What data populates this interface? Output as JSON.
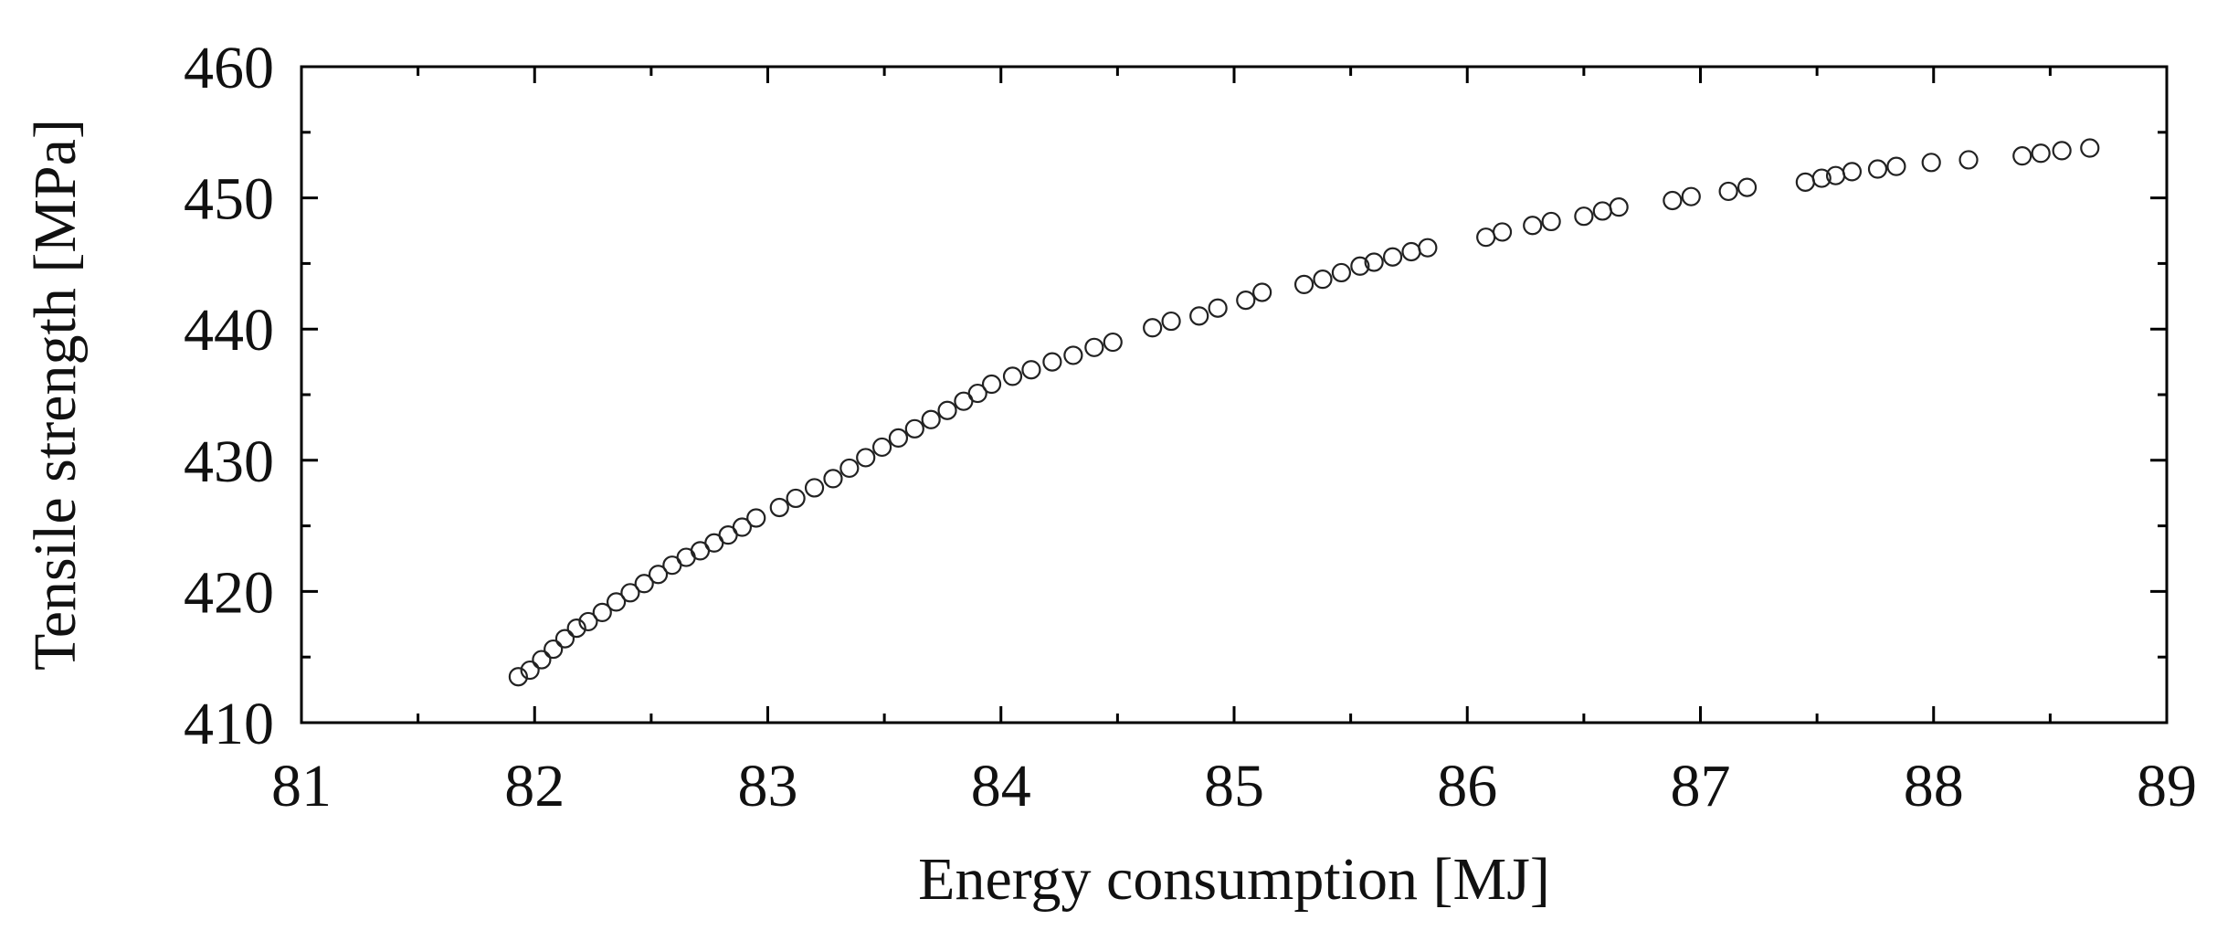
{
  "chart_data": {
    "type": "scatter",
    "title": "",
    "xlabel": "Energy consumption [MJ]",
    "ylabel": "Tensile strength [MPa]",
    "xlim": [
      81,
      89
    ],
    "ylim": [
      410,
      460
    ],
    "x_ticks": [
      81,
      82,
      83,
      84,
      85,
      86,
      87,
      88,
      89
    ],
    "y_ticks": [
      410,
      420,
      430,
      440,
      450,
      460
    ],
    "x_tick_labels": [
      "81",
      "82",
      "83",
      "84",
      "85",
      "86",
      "87",
      "88",
      "89"
    ],
    "y_tick_labels": [
      "410",
      "420",
      "430",
      "440",
      "450",
      "460"
    ],
    "grid": false,
    "marker": "open-circle",
    "series": [
      {
        "name": "",
        "x": [
          81.93,
          81.98,
          82.03,
          82.08,
          82.13,
          82.18,
          82.23,
          82.29,
          82.35,
          82.41,
          82.47,
          82.53,
          82.59,
          82.65,
          82.71,
          82.77,
          82.83,
          82.89,
          82.95,
          83.05,
          83.12,
          83.2,
          83.28,
          83.35,
          83.42,
          83.49,
          83.56,
          83.63,
          83.7,
          83.77,
          83.84,
          83.9,
          83.96,
          84.05,
          84.13,
          84.22,
          84.31,
          84.4,
          84.48,
          84.65,
          84.73,
          84.85,
          84.93,
          85.05,
          85.12,
          85.3,
          85.38,
          85.46,
          85.54,
          85.6,
          85.68,
          85.76,
          85.83,
          86.08,
          86.15,
          86.28,
          86.36,
          86.5,
          86.58,
          86.65,
          86.88,
          86.96,
          87.12,
          87.2,
          87.45,
          87.52,
          87.58,
          87.65,
          87.76,
          87.84,
          87.99,
          88.15,
          88.38,
          88.46,
          88.55,
          88.67
        ],
        "y": [
          413.5,
          414.0,
          414.8,
          415.6,
          416.4,
          417.2,
          417.7,
          418.4,
          419.2,
          419.9,
          420.6,
          421.3,
          422.0,
          422.6,
          423.1,
          423.7,
          424.3,
          424.9,
          425.6,
          426.4,
          427.1,
          427.9,
          428.6,
          429.4,
          430.2,
          431.0,
          431.7,
          432.4,
          433.1,
          433.8,
          434.5,
          435.1,
          435.8,
          436.4,
          436.9,
          437.5,
          438.0,
          438.6,
          439.0,
          440.1,
          440.6,
          441.0,
          441.6,
          442.2,
          442.8,
          443.4,
          443.8,
          444.3,
          444.8,
          445.1,
          445.5,
          445.9,
          446.2,
          447.0,
          447.4,
          447.9,
          448.2,
          448.6,
          449.0,
          449.3,
          449.8,
          450.1,
          450.5,
          450.8,
          451.2,
          451.5,
          451.7,
          452.0,
          452.2,
          452.4,
          452.7,
          452.9,
          453.2,
          453.4,
          453.6,
          453.8
        ]
      }
    ]
  }
}
